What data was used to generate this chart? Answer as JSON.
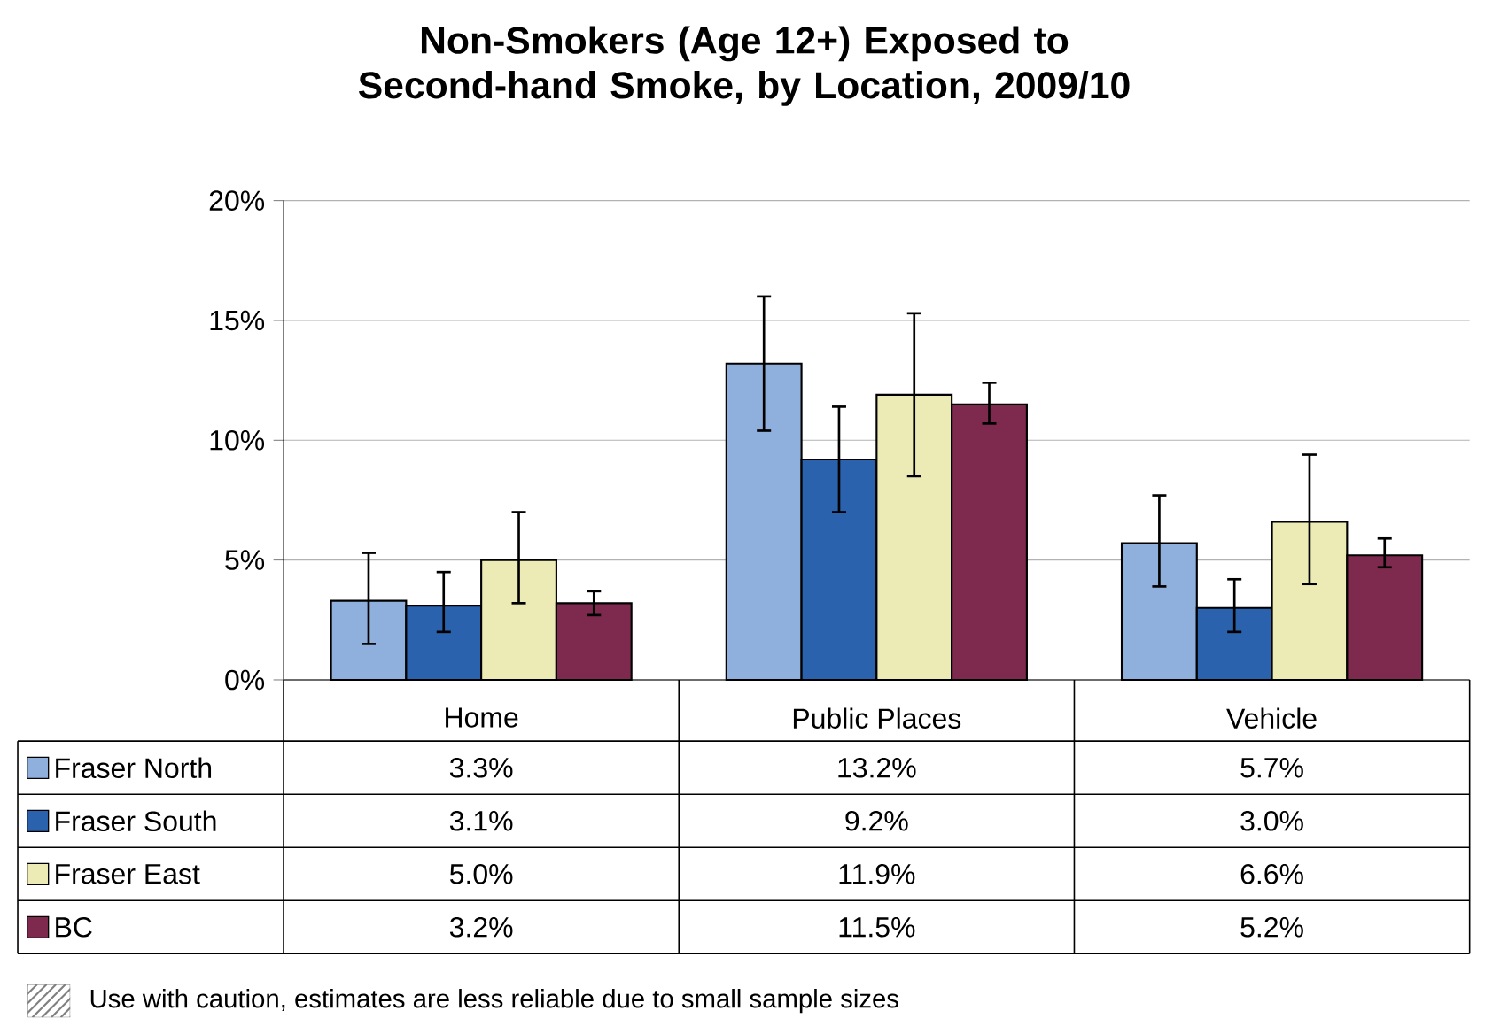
{
  "chart_data": {
    "type": "bar",
    "title": "Non-Smokers (Age 12+) Exposed to Second-hand Smoke, by Location, 2009/10",
    "categories": [
      "Home",
      "Public Places",
      "Vehicle"
    ],
    "series": [
      {
        "name": "Fraser North",
        "color": "#8fb0dc",
        "values": [
          3.3,
          13.2,
          5.7
        ],
        "value_labels": [
          "3.3%",
          "13.2%",
          "5.7%"
        ],
        "errors": [
          [
            1.5,
            5.3
          ],
          [
            10.4,
            16.0
          ],
          [
            3.9,
            7.7
          ]
        ]
      },
      {
        "name": "Fraser South",
        "color": "#2a62ad",
        "values": [
          3.1,
          9.2,
          3.0
        ],
        "value_labels": [
          "3.1%",
          "9.2%",
          "3.0%"
        ],
        "errors": [
          [
            2.0,
            4.5
          ],
          [
            7.0,
            11.4
          ],
          [
            2.0,
            4.2
          ]
        ]
      },
      {
        "name": "Fraser East",
        "color": "#ecebb5",
        "values": [
          5.0,
          11.9,
          6.6
        ],
        "value_labels": [
          "5.0%",
          "11.9%",
          "6.6%"
        ],
        "errors": [
          [
            3.2,
            7.0
          ],
          [
            8.5,
            15.3
          ],
          [
            4.0,
            9.4
          ]
        ]
      },
      {
        "name": "BC",
        "color": "#7e2a4e",
        "values": [
          3.2,
          11.5,
          5.2
        ],
        "value_labels": [
          "3.2%",
          "11.5%",
          "5.2%"
        ],
        "errors": [
          [
            2.7,
            3.7
          ],
          [
            10.7,
            12.4
          ],
          [
            4.7,
            5.9
          ]
        ]
      }
    ],
    "ylim": [
      0,
      20
    ],
    "yticks": [
      {
        "value": 0,
        "label": "0%"
      },
      {
        "value": 5,
        "label": "5%"
      },
      {
        "value": 10,
        "label": "10%"
      },
      {
        "value": 15,
        "label": "15%"
      },
      {
        "value": 20,
        "label": "20%"
      }
    ],
    "grid": "y",
    "legend": "bottom left",
    "annotations": [
      "Use with caution, estimates are less reliable due to small sample sizes"
    ]
  }
}
